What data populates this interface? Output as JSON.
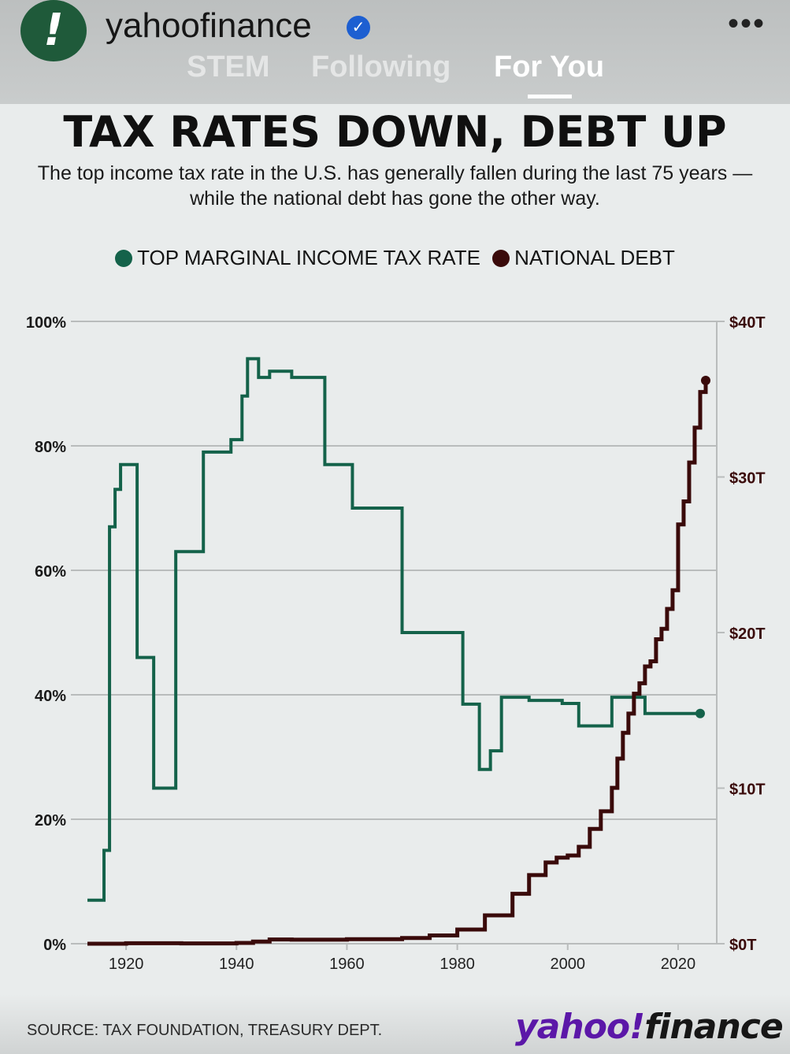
{
  "header": {
    "account_name": "yahoofinance",
    "verified_icon": "verified-badge-icon",
    "more_icon": "ellipsis-icon",
    "more_label": "•••",
    "avatar_glyph": "!",
    "tabs": [
      {
        "label": "STEM",
        "active": false
      },
      {
        "label": "Following",
        "active": false
      },
      {
        "label": "For You",
        "active": true
      }
    ]
  },
  "post": {
    "title": "TAX RATES DOWN, DEBT UP",
    "subtitle": "The top income tax rate in the U.S. has generally fallen during the last 75 years — while the national debt has gone the other way.",
    "source": "SOURCE: TAX FOUNDATION, TREASURY DEPT.",
    "logo": {
      "yahoo": "yahoo",
      "bang": "!",
      "finance": "finance"
    }
  },
  "colors": {
    "tax_rate": "#14624a",
    "debt": "#3a0a0a",
    "grid": "#b9bcbc",
    "text": "#1a1a1a"
  },
  "chart_data": {
    "type": "line",
    "title": "TAX RATES DOWN, DEBT UP",
    "legend": [
      "TOP MARGINAL INCOME TAX RATE",
      "NATIONAL DEBT"
    ],
    "legend_position": "top-center",
    "grid": true,
    "x_ticks": [
      1920,
      1940,
      1960,
      1980,
      2000,
      2020
    ],
    "xlim": [
      1910,
      2027
    ],
    "y_left": {
      "ticks": [
        "0%",
        "20%",
        "40%",
        "60%",
        "80%",
        "100%"
      ],
      "ylim": [
        0,
        100
      ]
    },
    "y_right": {
      "ticks": [
        "$0T",
        "$10T",
        "$20T",
        "$30T",
        "$40T"
      ],
      "ylim": [
        0,
        40
      ]
    },
    "series": [
      {
        "name": "TOP MARGINAL INCOME TAX RATE",
        "axis": "left",
        "step": true,
        "points": [
          [
            1913,
            7
          ],
          [
            1916,
            15
          ],
          [
            1917,
            67
          ],
          [
            1918,
            73
          ],
          [
            1919,
            77
          ],
          [
            1922,
            46
          ],
          [
            1925,
            25
          ],
          [
            1929,
            63
          ],
          [
            1934,
            79
          ],
          [
            1939,
            81
          ],
          [
            1941,
            88
          ],
          [
            1942,
            94
          ],
          [
            1944,
            91
          ],
          [
            1946,
            92
          ],
          [
            1950,
            91
          ],
          [
            1952,
            91
          ],
          [
            1956,
            77
          ],
          [
            1961,
            70
          ],
          [
            1970,
            50
          ],
          [
            1981,
            38.5
          ],
          [
            1984,
            28
          ],
          [
            1986,
            31
          ],
          [
            1988,
            39.6
          ],
          [
            1993,
            39.1
          ],
          [
            1999,
            38.6
          ],
          [
            2002,
            35
          ],
          [
            2008,
            39.6
          ],
          [
            2014,
            37
          ],
          [
            2024,
            37
          ]
        ]
      },
      {
        "name": "NATIONAL DEBT",
        "axis": "right",
        "step": true,
        "points": [
          [
            1913,
            0
          ],
          [
            1920,
            0.03
          ],
          [
            1930,
            0.02
          ],
          [
            1940,
            0.05
          ],
          [
            1943,
            0.14
          ],
          [
            1946,
            0.27
          ],
          [
            1950,
            0.26
          ],
          [
            1960,
            0.29
          ],
          [
            1970,
            0.37
          ],
          [
            1975,
            0.53
          ],
          [
            1980,
            0.91
          ],
          [
            1985,
            1.82
          ],
          [
            1990,
            3.21
          ],
          [
            1993,
            4.41
          ],
          [
            1996,
            5.22
          ],
          [
            1998,
            5.53
          ],
          [
            2000,
            5.67
          ],
          [
            2002,
            6.23
          ],
          [
            2004,
            7.38
          ],
          [
            2006,
            8.51
          ],
          [
            2008,
            10.02
          ],
          [
            2009,
            11.9
          ],
          [
            2010,
            13.56
          ],
          [
            2011,
            14.79
          ],
          [
            2012,
            16.07
          ],
          [
            2013,
            16.74
          ],
          [
            2014,
            17.82
          ],
          [
            2015,
            18.15
          ],
          [
            2016,
            19.57
          ],
          [
            2017,
            20.24
          ],
          [
            2018,
            21.52
          ],
          [
            2019,
            22.72
          ],
          [
            2020,
            26.95
          ],
          [
            2021,
            28.43
          ],
          [
            2022,
            30.93
          ],
          [
            2023,
            33.17
          ],
          [
            2024,
            35.46
          ],
          [
            2025,
            36.2
          ]
        ]
      }
    ]
  }
}
